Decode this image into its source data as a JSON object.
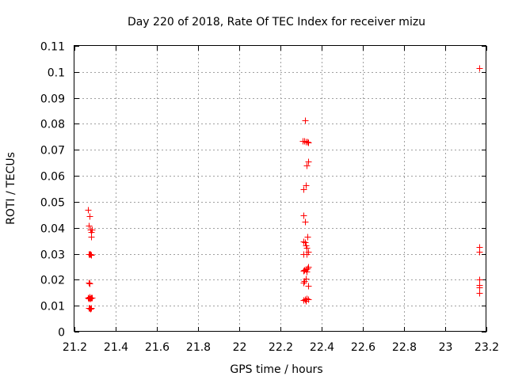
{
  "chart_data": {
    "type": "scatter",
    "title": "Day 220 of 2018, Rate Of TEC Index for receiver mizu",
    "xlabel": "GPS time / hours",
    "ylabel": "ROTI / TECUs",
    "xlim": [
      21.2,
      23.2
    ],
    "ylim": [
      0,
      0.11
    ],
    "xticks": [
      21.2,
      21.4,
      21.6,
      21.8,
      22,
      22.2,
      22.4,
      22.6,
      22.8,
      23,
      23.2
    ],
    "xtick_labels": [
      "21.2",
      "21.4",
      "21.6",
      "21.8",
      "22",
      "22.2",
      "22.4",
      "22.6",
      "22.8",
      "23",
      "23.2"
    ],
    "yticks": [
      0,
      0.01,
      0.02,
      0.03,
      0.04,
      0.05,
      0.06,
      0.07,
      0.08,
      0.09,
      0.1,
      0.11
    ],
    "ytick_labels": [
      "0",
      "0.01",
      "0.02",
      "0.03",
      "0.04",
      "0.05",
      "0.06",
      "0.07",
      "0.08",
      "0.09",
      "0.1",
      "0.11"
    ],
    "grid": true,
    "marker": "+",
    "color": "#ff0000",
    "series": [
      {
        "name": "ROTI",
        "points": [
          [
            21.267,
            0.0468
          ],
          [
            21.27,
            0.0408
          ],
          [
            21.275,
            0.0445
          ],
          [
            21.277,
            0.0392
          ],
          [
            21.28,
            0.0385
          ],
          [
            21.283,
            0.0392
          ],
          [
            21.281,
            0.0365
          ],
          [
            21.268,
            0.0298
          ],
          [
            21.272,
            0.0298
          ],
          [
            21.278,
            0.03
          ],
          [
            21.282,
            0.0297
          ],
          [
            21.268,
            0.0188
          ],
          [
            21.272,
            0.0185
          ],
          [
            21.266,
            0.0132
          ],
          [
            21.269,
            0.0128
          ],
          [
            21.272,
            0.0134
          ],
          [
            21.275,
            0.013
          ],
          [
            21.278,
            0.0127
          ],
          [
            21.281,
            0.0132
          ],
          [
            21.284,
            0.0131
          ],
          [
            21.268,
            0.009
          ],
          [
            21.272,
            0.0092
          ],
          [
            21.276,
            0.0089
          ],
          [
            21.28,
            0.0091
          ],
          [
            22.32,
            0.0815
          ],
          [
            22.308,
            0.0735
          ],
          [
            22.315,
            0.0733
          ],
          [
            22.322,
            0.0732
          ],
          [
            22.33,
            0.073
          ],
          [
            22.335,
            0.0728
          ],
          [
            22.335,
            0.0655
          ],
          [
            22.328,
            0.064
          ],
          [
            22.322,
            0.0565
          ],
          [
            22.31,
            0.0548
          ],
          [
            22.31,
            0.0448
          ],
          [
            22.32,
            0.0425
          ],
          [
            22.33,
            0.0365
          ],
          [
            22.31,
            0.0348
          ],
          [
            22.318,
            0.0343
          ],
          [
            22.322,
            0.0332
          ],
          [
            22.327,
            0.0322
          ],
          [
            22.333,
            0.0308
          ],
          [
            22.31,
            0.03
          ],
          [
            22.325,
            0.0298
          ],
          [
            22.335,
            0.025
          ],
          [
            22.33,
            0.0245
          ],
          [
            22.322,
            0.0242
          ],
          [
            22.317,
            0.0238
          ],
          [
            22.31,
            0.0235
          ],
          [
            22.327,
            0.0232
          ],
          [
            22.322,
            0.0205
          ],
          [
            22.315,
            0.0195
          ],
          [
            22.31,
            0.0188
          ],
          [
            22.333,
            0.0178
          ],
          [
            22.31,
            0.0123
          ],
          [
            22.318,
            0.0125
          ],
          [
            22.322,
            0.012
          ],
          [
            22.328,
            0.0127
          ],
          [
            22.335,
            0.0124
          ],
          [
            23.165,
            0.1015
          ],
          [
            23.165,
            0.0325
          ],
          [
            23.165,
            0.0308
          ],
          [
            23.165,
            0.0202
          ],
          [
            23.165,
            0.018
          ],
          [
            23.165,
            0.0172
          ],
          [
            23.165,
            0.0148
          ]
        ]
      }
    ]
  }
}
